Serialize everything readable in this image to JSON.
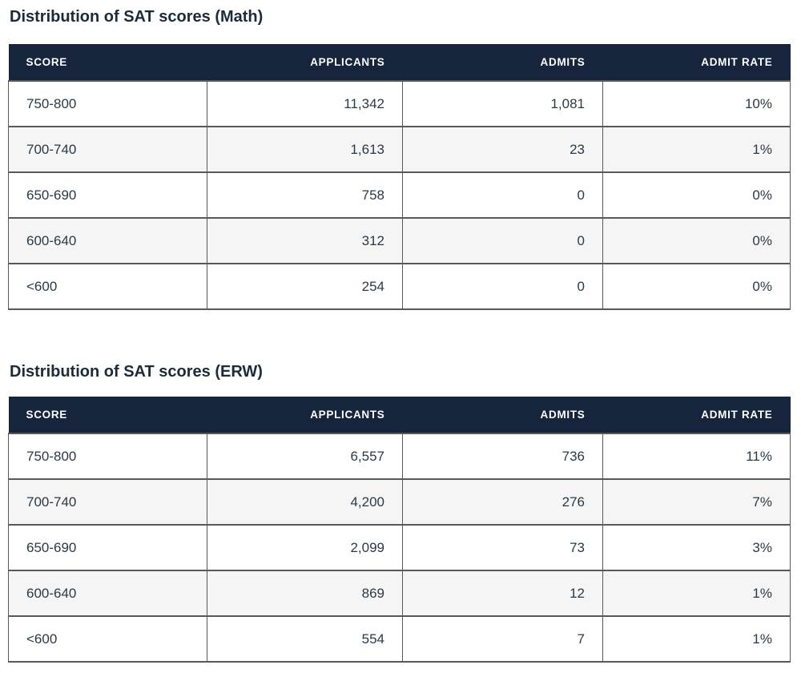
{
  "colors": {
    "header_bg": "#16253c",
    "header_text": "#ffffff",
    "title_text": "#1c2b3a",
    "cell_text": "#2b3947",
    "row_alt_bg": "#f5f5f5",
    "border": "#595959"
  },
  "tables": [
    {
      "title": "Distribution of SAT scores (Math)",
      "columns": [
        "SCORE",
        "APPLICANTS",
        "ADMITS",
        "ADMIT RATE"
      ],
      "rows": [
        [
          "750-800",
          "11,342",
          "1,081",
          "10%"
        ],
        [
          "700-740",
          "1,613",
          "23",
          "1%"
        ],
        [
          "650-690",
          "758",
          "0",
          "0%"
        ],
        [
          "600-640",
          "312",
          "0",
          "0%"
        ],
        [
          "<600",
          "254",
          "0",
          "0%"
        ]
      ]
    },
    {
      "title": "Distribution of SAT scores (ERW)",
      "columns": [
        "SCORE",
        "APPLICANTS",
        "ADMITS",
        "ADMIT RATE"
      ],
      "rows": [
        [
          "750-800",
          "6,557",
          "736",
          "11%"
        ],
        [
          "700-740",
          "4,200",
          "276",
          "7%"
        ],
        [
          "650-690",
          "2,099",
          "73",
          "3%"
        ],
        [
          "600-640",
          "869",
          "12",
          "1%"
        ],
        [
          "<600",
          "554",
          "7",
          "1%"
        ]
      ]
    }
  ]
}
